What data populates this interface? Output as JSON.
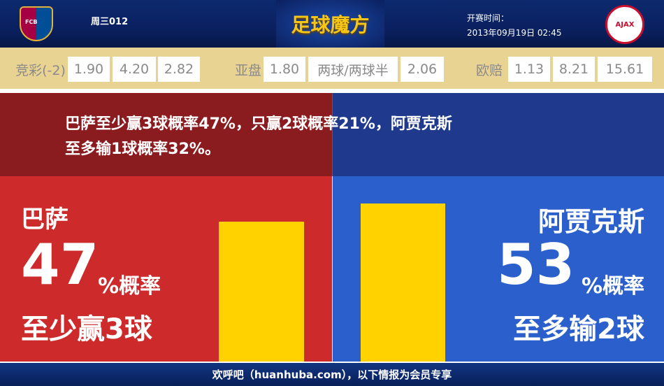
{
  "header": {
    "home_logo": "FCB",
    "match_no": "周三012",
    "brand": "足球魔方",
    "time_label": "开赛时间：",
    "time_value": "2013年09月19日 02:45",
    "away_logo": "AJAX"
  },
  "odds": {
    "jc_label": "竞彩(-2)",
    "jc": [
      "1.90",
      "4.20",
      "2.82"
    ],
    "ah_label": "亚盘",
    "ah": [
      "1.80",
      "两球/两球半",
      "2.06"
    ],
    "eu_label": "欧赔",
    "eu": [
      "1.13",
      "8.21",
      "15.61"
    ]
  },
  "summary": {
    "line1": "巴萨至少赢3球概率47%，只赢2球概率21%，阿贾克斯",
    "line2": "至多输1球概率32%。"
  },
  "home": {
    "name": "巴萨",
    "pct": "47",
    "pct_suffix": "%概率",
    "desc": "至少赢3球",
    "value": 47
  },
  "away": {
    "name": "阿贾克斯",
    "pct": "53",
    "pct_suffix": "%概率",
    "desc": "至多输2球",
    "value": 53
  },
  "colors": {
    "home": "#cd2a2b",
    "away": "#2b5fcc",
    "bar": "#ffd200",
    "odds_band": "#e9d393"
  },
  "footer": "欢呼吧（huanhuba.com），以下情报为会员专享"
}
